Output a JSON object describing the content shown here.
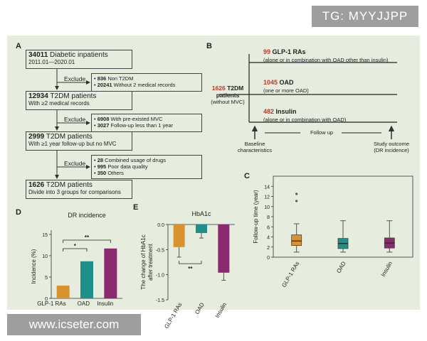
{
  "overlay": {
    "tg": "TG: MYYJJPP",
    "watermark": "www.icseter.com"
  },
  "colors": {
    "glp1": "#d9922e",
    "oad": "#1f8f8a",
    "insulin": "#8b2a6e",
    "panel": "#e6ecde"
  },
  "panel_a": {
    "label": "A",
    "box1": {
      "num": "34011",
      "title": " Diabetic inpatients",
      "sub": "2011.01—2020.01"
    },
    "ex1": {
      "label": "Exclude",
      "items": [
        {
          "num": "836",
          "text": " Non T2DM"
        },
        {
          "num": "20241",
          "text": " Without 2 medical records"
        }
      ]
    },
    "box2": {
      "num": "12934",
      "title": " T2DM patients",
      "sub": "With ≥2 medical records"
    },
    "ex2": {
      "label": "Exclude",
      "items": [
        {
          "num": "6908",
          "text": " With pre-existed MVC"
        },
        {
          "num": "3027",
          "text": " Follow-up less than 1 year"
        }
      ]
    },
    "box3": {
      "num": "2999",
      "title": " T2DM patients",
      "sub": "With ≥1 year follow-up but no MVC"
    },
    "ex3": {
      "label": "Exclude",
      "items": [
        {
          "num": "28",
          "text": " Combined usage of drugs"
        },
        {
          "num": "995",
          "text": " Poor data quality"
        },
        {
          "num": "350",
          "text": " Others"
        }
      ]
    },
    "box4": {
      "num": "1626",
      "title": " T2DM patients",
      "sub": "Divide into 3 groups for comparisons"
    }
  },
  "panel_b": {
    "label": "B",
    "total_num": "1626",
    "total_title": " T2DM",
    "total_title2": "patients",
    "total_sub": "(without MVC)",
    "groups": [
      {
        "num": "99",
        "name": " GLP-1 RAs",
        "sub": "(alone or in combination with OAD other than insulin)"
      },
      {
        "num": "1045",
        "name": " OAD",
        "sub": "(one or more OAD)"
      },
      {
        "num": "482",
        "name": " Insulin",
        "sub": "(alone or in combination with OAD)"
      }
    ],
    "baseline": "Baseline",
    "baseline2": "characteristics",
    "followup": "Follow up",
    "outcome": "Study outcome",
    "outcome2": "(DR incidence)"
  },
  "chart_data": [
    {
      "panel": "C",
      "type": "box",
      "title": "",
      "ylabel": "Follow-up time (year)",
      "categories": [
        "GLP-1 RAs",
        "OAD",
        "Insulin"
      ],
      "ylim": [
        0,
        16
      ],
      "yticks": [
        "0",
        "2",
        "4",
        "6",
        "8",
        "10",
        "12",
        "14"
      ],
      "boxes": [
        {
          "min": 1,
          "q1": 2.3,
          "median": 3.2,
          "q3": 4.4,
          "max": 6.6,
          "outliers": [
            11.1,
            12.5
          ]
        },
        {
          "min": 1,
          "q1": 1.7,
          "median": 2.7,
          "q3": 3.7,
          "max": 7.2,
          "outliers": []
        },
        {
          "min": 1,
          "q1": 1.8,
          "median": 2.8,
          "q3": 3.8,
          "max": 7.2,
          "outliers": []
        }
      ]
    },
    {
      "panel": "D",
      "type": "bar",
      "title": "DR incidence",
      "ylabel": "Incidence (%)",
      "categories": [
        "GLP-1 RAs",
        "OAD",
        "Insulin"
      ],
      "values": [
        3.0,
        8.7,
        11.7
      ],
      "ylim": [
        0,
        15
      ],
      "yticks": [
        "0",
        "5",
        "10",
        "15"
      ],
      "significance": [
        {
          "from": 0,
          "to": 1,
          "label": "*"
        },
        {
          "from": 0,
          "to": 2,
          "label": "**"
        }
      ]
    },
    {
      "panel": "E",
      "type": "bar",
      "title": "HbA1c",
      "ylabel": "The change of HbA1c",
      "ylabel2": "after treatment",
      "categories": [
        "GLP-1 RAs",
        "OAD",
        "Insulin"
      ],
      "values": [
        -0.45,
        -0.17,
        -0.96
      ],
      "errors": [
        0.2,
        0.1,
        0.15
      ],
      "ylim": [
        -1.5,
        0.0
      ],
      "yticks": [
        "0.0",
        "-0.5",
        "-1.0",
        "-1.5"
      ],
      "significance": [
        {
          "from": 0,
          "to": 1,
          "label": "**"
        }
      ]
    }
  ],
  "panel_labels": {
    "c": "C",
    "d": "D",
    "e": "E"
  }
}
